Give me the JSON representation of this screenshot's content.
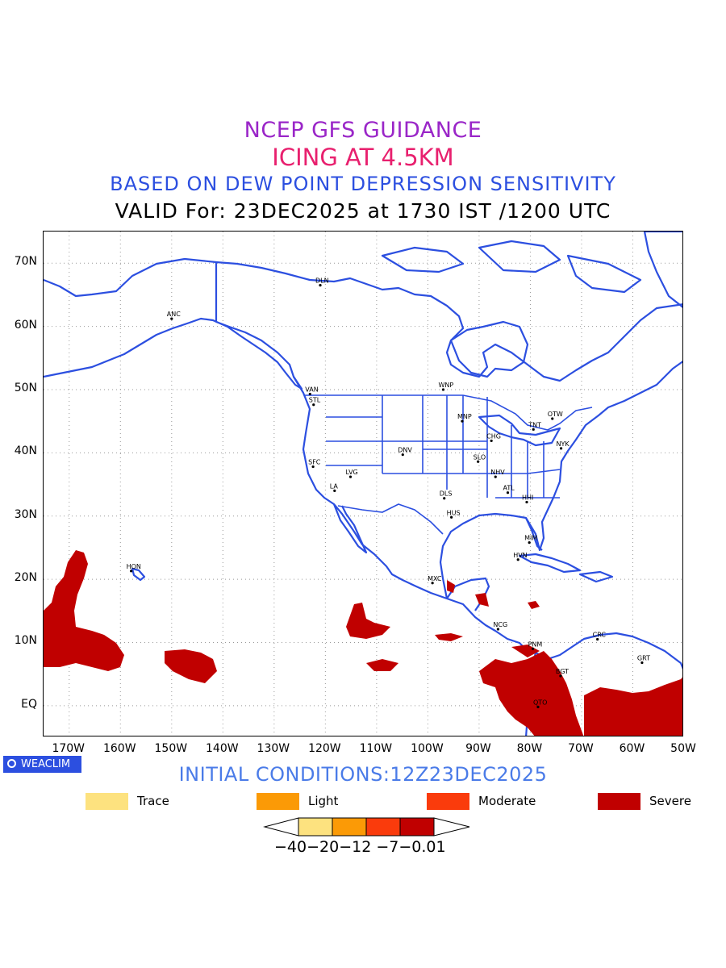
{
  "titles": {
    "line1": "NCEP GFS GUIDANCE",
    "line2": "ICING AT 4.5KM",
    "line3": "BASED ON DEW POINT DEPRESSION SENSITIVITY",
    "line4": "VALID For: 23DEC2025 at 1730 IST /1200 UTC"
  },
  "colors": {
    "title1": "#9a26c8",
    "title2": "#e8206e",
    "title3": "#2c4fe0",
    "coast": "#2c4fe0",
    "trace": "#fde27f",
    "light": "#fb9a06",
    "moderate": "#fa3b0c",
    "severe": "#c00000"
  },
  "map": {
    "lat_range": [
      -5,
      75
    ],
    "lon_range": [
      -175,
      -50
    ],
    "lat_labels": [
      "EQ",
      "10N",
      "20N",
      "30N",
      "40N",
      "50N",
      "60N",
      "70N"
    ],
    "lon_labels": [
      "170W",
      "160W",
      "150W",
      "140W",
      "130W",
      "120W",
      "110W",
      "100W",
      "90W",
      "80W",
      "70W",
      "60W",
      "50W"
    ],
    "stations": [
      {
        "code": "DLN",
        "lon": -121,
        "lat": 66.5
      },
      {
        "code": "ANC",
        "lon": -150,
        "lat": 61.2
      },
      {
        "code": "WNP",
        "lon": -97,
        "lat": 50
      },
      {
        "code": "VAN",
        "lon": -123,
        "lat": 49.3
      },
      {
        "code": "STL",
        "lon": -122.3,
        "lat": 47.6
      },
      {
        "code": "OTW",
        "lon": -75.7,
        "lat": 45.4
      },
      {
        "code": "MNP",
        "lon": -93.3,
        "lat": 45
      },
      {
        "code": "TNT",
        "lon": -79.4,
        "lat": 43.7
      },
      {
        "code": "CHG",
        "lon": -87.6,
        "lat": 41.9
      },
      {
        "code": "NYK",
        "lon": -74,
        "lat": 40.7
      },
      {
        "code": "DNV",
        "lon": -104.9,
        "lat": 39.7
      },
      {
        "code": "SFC",
        "lon": -122.4,
        "lat": 37.8
      },
      {
        "code": "SLO",
        "lon": -90.2,
        "lat": 38.6
      },
      {
        "code": "LVG",
        "lon": -115.1,
        "lat": 36.2
      },
      {
        "code": "NHV",
        "lon": -86.8,
        "lat": 36.2
      },
      {
        "code": "LA",
        "lon": -118.2,
        "lat": 34
      },
      {
        "code": "ATL",
        "lon": -84.4,
        "lat": 33.7
      },
      {
        "code": "DLS",
        "lon": -96.8,
        "lat": 32.8
      },
      {
        "code": "HHI",
        "lon": -80.7,
        "lat": 32.2
      },
      {
        "code": "HUS",
        "lon": -95.4,
        "lat": 29.8
      },
      {
        "code": "MIM",
        "lon": -80.2,
        "lat": 25.8
      },
      {
        "code": "HON",
        "lon": -157.9,
        "lat": 21.3
      },
      {
        "code": "HVN",
        "lon": -82.4,
        "lat": 23.1
      },
      {
        "code": "MXC",
        "lon": -99.1,
        "lat": 19.4
      },
      {
        "code": "NCG",
        "lon": -86.3,
        "lat": 12.1
      },
      {
        "code": "CRC",
        "lon": -66.9,
        "lat": 10.5
      },
      {
        "code": "PNM",
        "lon": -79.5,
        "lat": 9
      },
      {
        "code": "GRT",
        "lon": -58.2,
        "lat": 6.8
      },
      {
        "code": "BGT",
        "lon": -74.1,
        "lat": 4.7
      },
      {
        "code": "QTO",
        "lon": -78.5,
        "lat": -0.2
      }
    ]
  },
  "branding": {
    "label": "WEACLIM",
    "icon": "circle-logo-icon"
  },
  "initial_conditions": "INITIAL CONDITIONS:12Z23DEC2025",
  "legend": [
    {
      "label": "Trace",
      "color": "#fde27f"
    },
    {
      "label": "Light",
      "color": "#fb9a06"
    },
    {
      "label": "Moderate",
      "color": "#fa3b0c"
    },
    {
      "label": "Severe",
      "color": "#c00000"
    }
  ],
  "colorbar": {
    "labels": "−40−20−12 −7−0.01"
  }
}
